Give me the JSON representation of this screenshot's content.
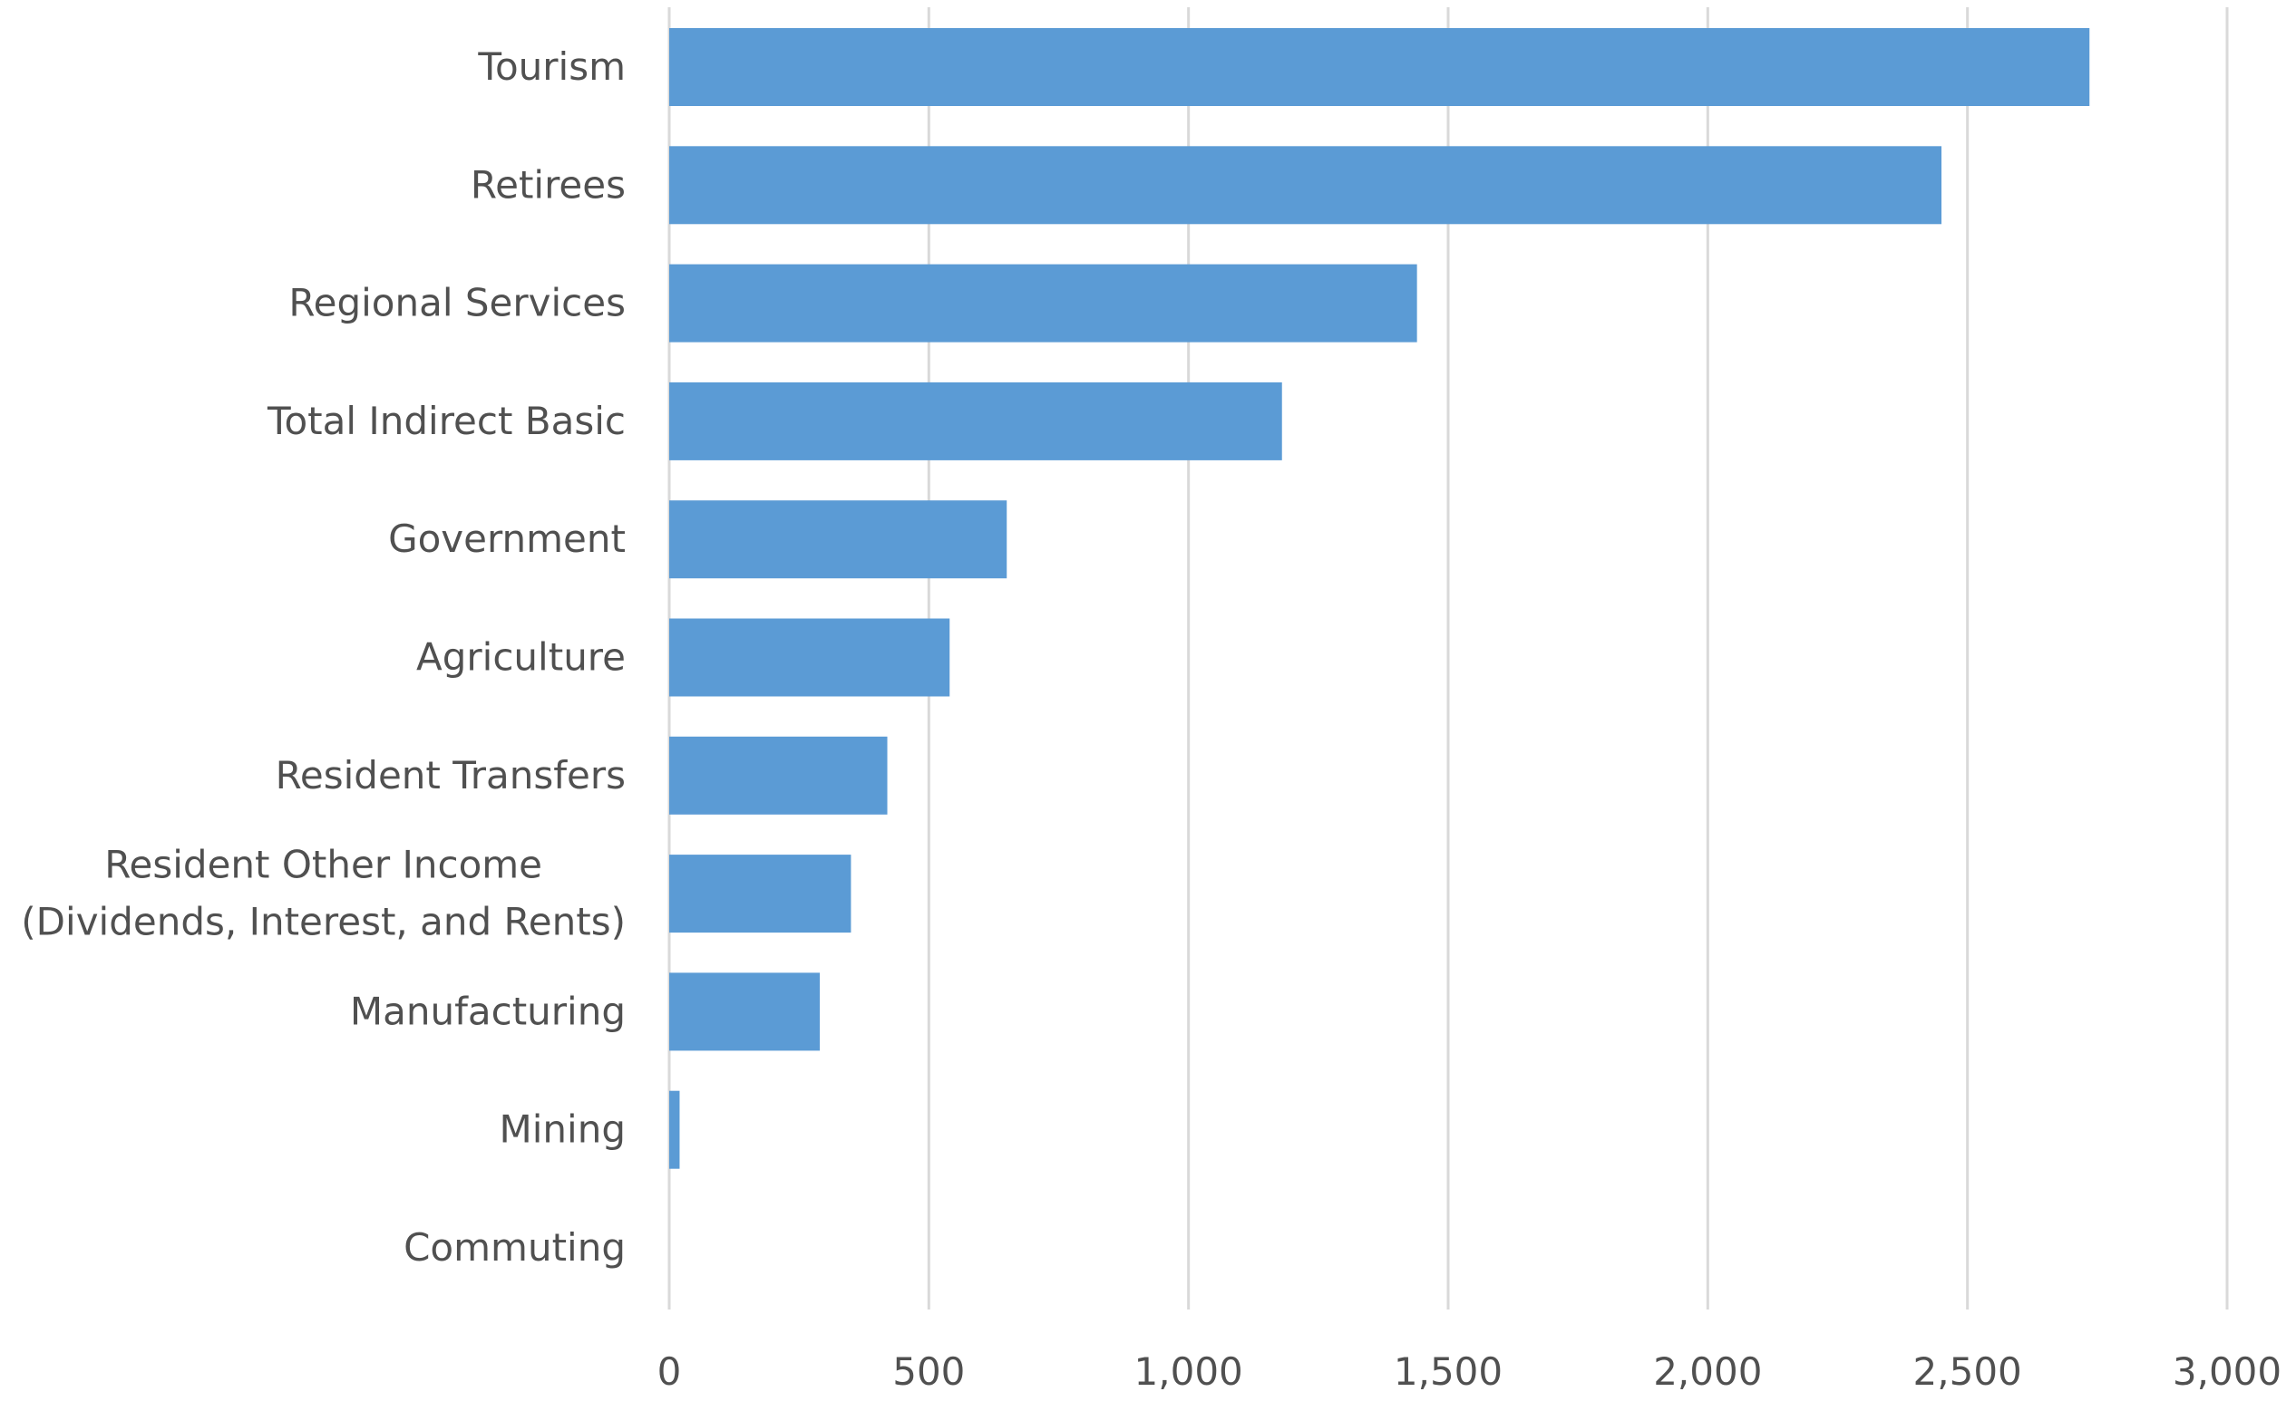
{
  "chart_data": {
    "type": "bar",
    "orientation": "horizontal",
    "categories": [
      "Tourism",
      "Retirees",
      "Regional Services",
      "Total Indirect Basic",
      "Government",
      "Agriculture",
      "Resident Transfers",
      "Resident Other Income (Dividends, Interest, and Rents)",
      "Manufacturing",
      "Mining",
      "Commuting"
    ],
    "category_lines": [
      [
        "Tourism"
      ],
      [
        "Retirees"
      ],
      [
        "Regional Services"
      ],
      [
        "Total Indirect Basic"
      ],
      [
        "Government"
      ],
      [
        "Agriculture"
      ],
      [
        "Resident Transfers"
      ],
      [
        "Resident Other Income",
        "(Dividends, Interest, and Rents)"
      ],
      [
        "Manufacturing"
      ],
      [
        "Mining"
      ],
      [
        "Commuting"
      ]
    ],
    "values": [
      2735,
      2450,
      1440,
      1180,
      650,
      540,
      420,
      350,
      290,
      20,
      0
    ],
    "xlim": [
      0,
      3000
    ],
    "xticks": [
      0,
      500,
      1000,
      1500,
      2000,
      2500,
      3000
    ],
    "xtick_labels": [
      "0",
      "500",
      "1,000",
      "1,500",
      "2,000",
      "2,500",
      "3,000"
    ],
    "title": "",
    "xlabel": "",
    "ylabel": "",
    "grid": "vertical",
    "legend": "none",
    "bar_color": "#5b9bd5",
    "grid_color": "#d9d9d9",
    "text_color": "#505050"
  }
}
